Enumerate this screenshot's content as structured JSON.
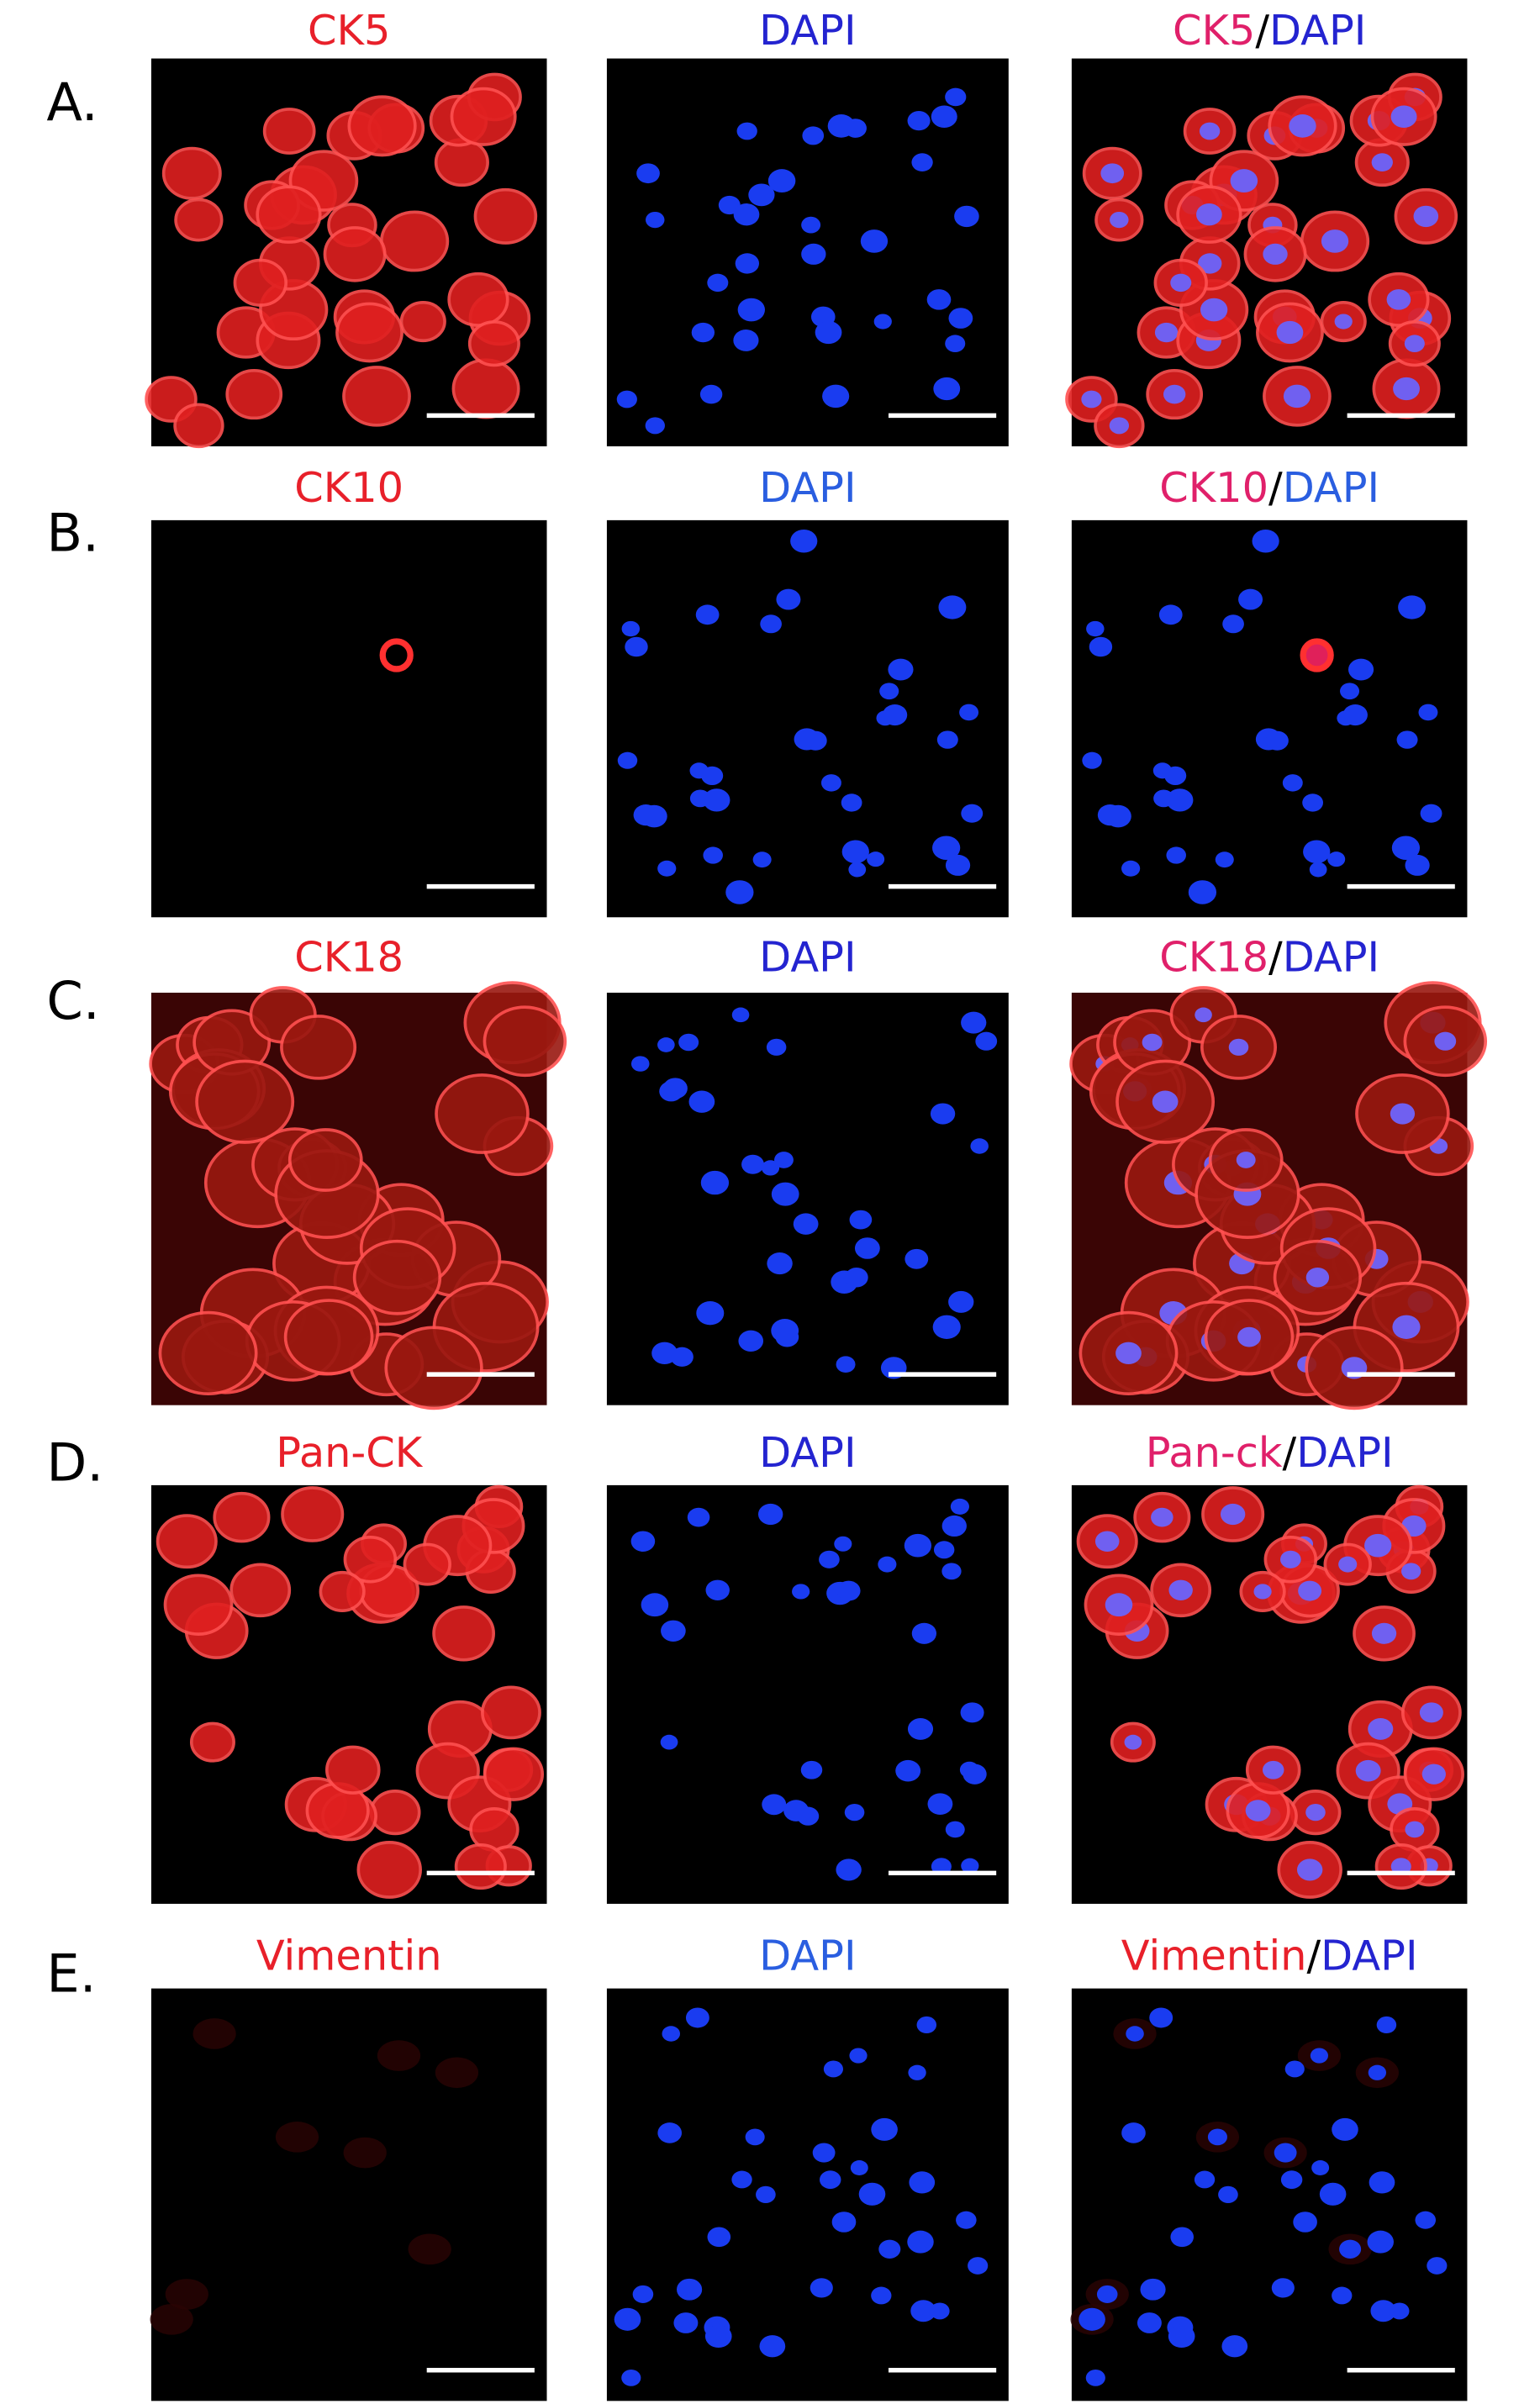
{
  "rows": [
    {
      "label": "A.",
      "panels": [
        {
          "title": [
            {
              "text": "CK5",
              "color": "#e8202a"
            }
          ]
        },
        {
          "title": [
            {
              "text": "DAPI",
              "color": "#2424d0"
            }
          ]
        },
        {
          "title": [
            {
              "text": "CK5",
              "color": "#e0206a"
            },
            {
              "text": "/",
              "color": "#000000"
            },
            {
              "text": "DAPI",
              "color": "#2424d0"
            }
          ]
        }
      ]
    },
    {
      "label": "B.",
      "panels": [
        {
          "title": [
            {
              "text": "CK10",
              "color": "#e8202a"
            }
          ]
        },
        {
          "title": [
            {
              "text": "DAPI",
              "color": "#2a5ee0"
            }
          ]
        },
        {
          "title": [
            {
              "text": "CK10",
              "color": "#e0206a"
            },
            {
              "text": "/",
              "color": "#000000"
            },
            {
              "text": "DAPI",
              "color": "#2a5ee0"
            }
          ]
        }
      ]
    },
    {
      "label": "C.",
      "panels": [
        {
          "title": [
            {
              "text": "CK18",
              "color": "#e8202a"
            }
          ]
        },
        {
          "title": [
            {
              "text": "DAPI",
              "color": "#2424d0"
            }
          ]
        },
        {
          "title": [
            {
              "text": "CK18",
              "color": "#e0206a"
            },
            {
              "text": "/",
              "color": "#000000"
            },
            {
              "text": "DAPI",
              "color": "#2424d0"
            }
          ]
        }
      ]
    },
    {
      "label": "D.",
      "panels": [
        {
          "title": [
            {
              "text": "Pan-CK",
              "color": "#e8202a"
            }
          ]
        },
        {
          "title": [
            {
              "text": "DAPI",
              "color": "#2424d0"
            }
          ]
        },
        {
          "title": [
            {
              "text": "Pan-ck",
              "color": "#e0206a"
            },
            {
              "text": "/",
              "color": "#000000"
            },
            {
              "text": "DAPI",
              "color": "#2424d0"
            }
          ]
        }
      ]
    },
    {
      "label": "E.",
      "panels": [
        {
          "title": [
            {
              "text": "Vimentin",
              "color": "#e8202a"
            }
          ]
        },
        {
          "title": [
            {
              "text": "DAPI",
              "color": "#2a5ee0"
            }
          ]
        },
        {
          "title": [
            {
              "text": "Vimentin",
              "color": "#e8202a"
            },
            {
              "text": "/",
              "color": "#000000"
            },
            {
              "text": "DAPI",
              "color": "#2424d0"
            }
          ]
        }
      ]
    }
  ]
}
